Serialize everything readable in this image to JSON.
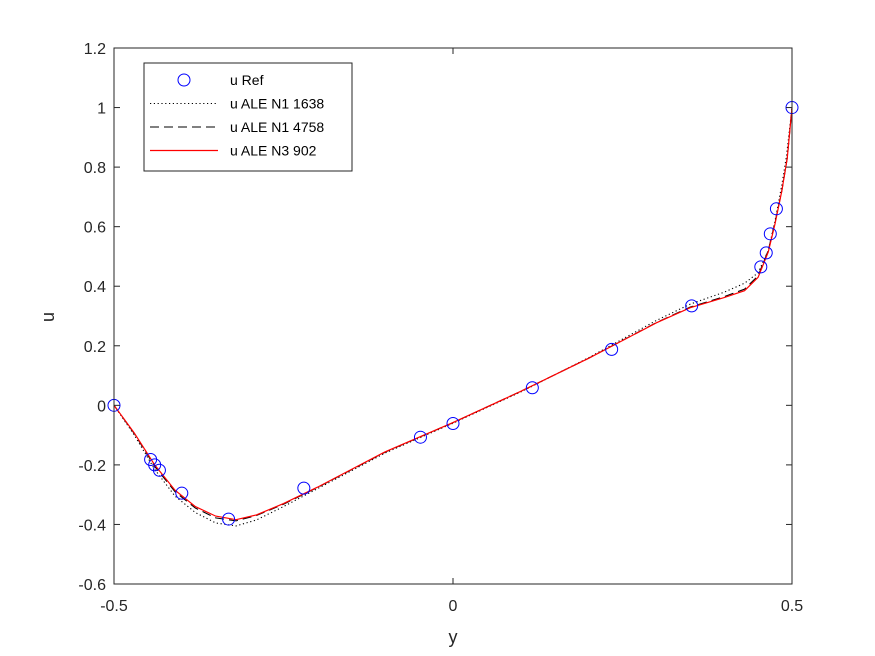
{
  "chart_data": {
    "type": "line",
    "xlabel": "y",
    "ylabel": "u",
    "xlim": [
      -0.5,
      0.5
    ],
    "ylim": [
      -0.6,
      1.2
    ],
    "x_ticks": [
      -0.5,
      0,
      0.5
    ],
    "x_tick_labels": [
      "-0.5",
      "0",
      "0.5"
    ],
    "y_ticks": [
      -0.6,
      -0.4,
      -0.2,
      0,
      0.2,
      0.4,
      0.6,
      0.8,
      1,
      1.2
    ],
    "y_tick_labels": [
      "-0.6",
      "-0.4",
      "-0.2",
      "0",
      "0.2",
      "0.4",
      "0.6",
      "0.8",
      "1",
      "1.2"
    ],
    "grid": false,
    "legend_position": "top-left",
    "series": [
      {
        "name": "u Ref",
        "style": "markers",
        "color": "#0000ff",
        "points": [
          [
            -0.5,
            0.0
          ],
          [
            -0.446,
            -0.182
          ],
          [
            -0.44,
            -0.2
          ],
          [
            -0.433,
            -0.218
          ],
          [
            -0.4,
            -0.295
          ],
          [
            -0.331,
            -0.382
          ],
          [
            -0.22,
            -0.278
          ],
          [
            -0.048,
            -0.107
          ],
          [
            0.0,
            -0.061
          ],
          [
            0.117,
            0.059
          ],
          [
            0.234,
            0.188
          ],
          [
            0.352,
            0.334
          ],
          [
            0.454,
            0.465
          ],
          [
            0.462,
            0.512
          ],
          [
            0.468,
            0.576
          ],
          [
            0.477,
            0.66
          ],
          [
            0.5,
            1.0
          ]
        ]
      },
      {
        "name": "u ALE N1 1638",
        "style": "dotted",
        "color": "#000000",
        "points": [
          [
            -0.5,
            0.0
          ],
          [
            -0.47,
            -0.1
          ],
          [
            -0.44,
            -0.215
          ],
          [
            -0.41,
            -0.305
          ],
          [
            -0.38,
            -0.36
          ],
          [
            -0.35,
            -0.395
          ],
          [
            -0.32,
            -0.405
          ],
          [
            -0.29,
            -0.385
          ],
          [
            -0.25,
            -0.34
          ],
          [
            -0.2,
            -0.28
          ],
          [
            -0.1,
            -0.16
          ],
          [
            0.0,
            -0.06
          ],
          [
            0.1,
            0.045
          ],
          [
            0.2,
            0.16
          ],
          [
            0.3,
            0.285
          ],
          [
            0.35,
            0.34
          ],
          [
            0.4,
            0.38
          ],
          [
            0.43,
            0.41
          ],
          [
            0.45,
            0.445
          ],
          [
            0.465,
            0.52
          ],
          [
            0.475,
            0.62
          ],
          [
            0.485,
            0.74
          ],
          [
            0.492,
            0.84
          ],
          [
            0.5,
            1.0
          ]
        ]
      },
      {
        "name": "u ALE N1 4758",
        "style": "dashed",
        "color": "#000000",
        "points": [
          [
            -0.5,
            0.0
          ],
          [
            -0.47,
            -0.095
          ],
          [
            -0.44,
            -0.205
          ],
          [
            -0.41,
            -0.29
          ],
          [
            -0.38,
            -0.345
          ],
          [
            -0.35,
            -0.378
          ],
          [
            -0.32,
            -0.388
          ],
          [
            -0.29,
            -0.37
          ],
          [
            -0.25,
            -0.332
          ],
          [
            -0.2,
            -0.276
          ],
          [
            -0.1,
            -0.157
          ],
          [
            0.0,
            -0.058
          ],
          [
            0.1,
            0.047
          ],
          [
            0.2,
            0.158
          ],
          [
            0.3,
            0.278
          ],
          [
            0.35,
            0.33
          ],
          [
            0.4,
            0.365
          ],
          [
            0.43,
            0.39
          ],
          [
            0.45,
            0.435
          ],
          [
            0.465,
            0.52
          ],
          [
            0.475,
            0.615
          ],
          [
            0.485,
            0.72
          ],
          [
            0.493,
            0.83
          ],
          [
            0.5,
            1.0
          ]
        ]
      },
      {
        "name": "u ALE N3 902",
        "style": "solid",
        "color": "#ff0000",
        "points": [
          [
            -0.5,
            0.0
          ],
          [
            -0.47,
            -0.093
          ],
          [
            -0.44,
            -0.2
          ],
          [
            -0.41,
            -0.285
          ],
          [
            -0.38,
            -0.34
          ],
          [
            -0.35,
            -0.372
          ],
          [
            -0.32,
            -0.384
          ],
          [
            -0.29,
            -0.368
          ],
          [
            -0.25,
            -0.33
          ],
          [
            -0.2,
            -0.275
          ],
          [
            -0.1,
            -0.156
          ],
          [
            0.0,
            -0.058
          ],
          [
            0.1,
            0.047
          ],
          [
            0.2,
            0.158
          ],
          [
            0.3,
            0.277
          ],
          [
            0.35,
            0.328
          ],
          [
            0.4,
            0.362
          ],
          [
            0.43,
            0.385
          ],
          [
            0.45,
            0.43
          ],
          [
            0.465,
            0.515
          ],
          [
            0.475,
            0.61
          ],
          [
            0.485,
            0.72
          ],
          [
            0.493,
            0.83
          ],
          [
            0.5,
            1.0
          ]
        ]
      }
    ]
  }
}
